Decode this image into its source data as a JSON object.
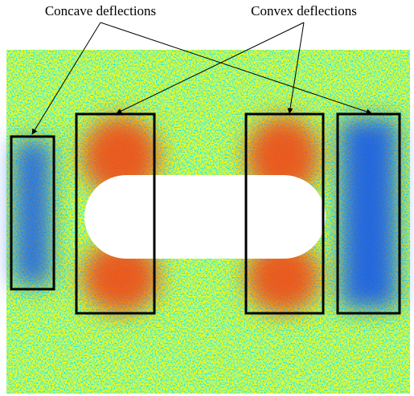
{
  "annotations": {
    "concave": "Concave deflections",
    "convex": "Convex deflections"
  }
}
